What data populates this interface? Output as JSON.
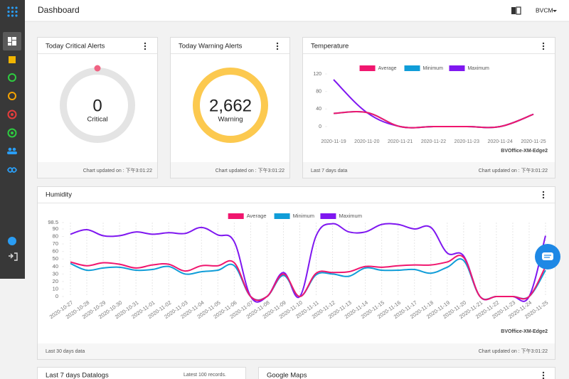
{
  "header": {
    "title": "Dashboard",
    "user": "BVCM"
  },
  "cards": {
    "critical": {
      "title": "Today Critical Alerts",
      "value": "0",
      "label": "Critical",
      "footer": "Chart updated on : 下午3:01:22"
    },
    "warning": {
      "title": "Today Warning Alerts",
      "value": "2,662",
      "label": "Warning",
      "footer": "Chart updated on : 下午3:01:22"
    },
    "temperature": {
      "footer_left": "Last 7 days data",
      "footer_right": "Chart updated on : 下午3:01:22"
    },
    "humidity": {
      "footer_left": "Last 30 days data",
      "footer_right": "Chart updated on : 下午3:01:22"
    },
    "datalogs": {
      "title": "Last 7 days Datalogs",
      "note": "Latest 100 records."
    },
    "maps": {
      "title": "Google Maps"
    }
  },
  "chart_data": [
    {
      "type": "line",
      "title": "Temperature",
      "annotation": "BVOffice-XM-Edge2",
      "categories": [
        "2020-11-19",
        "2020-11-20",
        "2020-11-21",
        "2020-11-22",
        "2020-11-23",
        "2020-11-24",
        "2020-11-25"
      ],
      "series": [
        {
          "name": "Average",
          "color": "#f0166e",
          "values": [
            30,
            32,
            0,
            0,
            0,
            0,
            28
          ]
        },
        {
          "name": "Minimum",
          "color": "#109dd8",
          "values": [
            30,
            32,
            0,
            0,
            0,
            0,
            28
          ]
        },
        {
          "name": "Maximum",
          "color": "#7f17f0",
          "values": [
            107,
            32,
            0,
            0,
            0,
            0,
            28
          ]
        }
      ],
      "ylim": [
        0,
        120
      ],
      "yticks": [
        0,
        40,
        80,
        120
      ],
      "grid": false
    },
    {
      "type": "line",
      "title": "Humidity",
      "annotation": "BVOffice-XM-Edge2",
      "categories": [
        "2020-10-27",
        "2020-10-28",
        "2020-10-29",
        "2020-10-30",
        "2020-10-31",
        "2020-11-01",
        "2020-11-02",
        "2020-11-03",
        "2020-11-04",
        "2020-11-05",
        "2020-11-06",
        "2020-11-07",
        "2020-11-08",
        "2020-11-09",
        "2020-11-10",
        "2020-11-11",
        "2020-11-12",
        "2020-11-13",
        "2020-11-14",
        "2020-11-15",
        "2020-11-16",
        "2020-11-17",
        "2020-11-18",
        "2020-11-19",
        "2020-11-20",
        "2020-11-21",
        "2020-11-22",
        "2020-11-23",
        "2020-11-24",
        "2020-11-25"
      ],
      "series": [
        {
          "name": "Average",
          "color": "#f0166e",
          "values": [
            46,
            41,
            45,
            43,
            38,
            42,
            43,
            34,
            41,
            41,
            45,
            0,
            0,
            30,
            0,
            31,
            32,
            33,
            40,
            39,
            41,
            42,
            42,
            46,
            52,
            0,
            0,
            0,
            0,
            40
          ]
        },
        {
          "name": "Minimum",
          "color": "#109dd8",
          "values": [
            44,
            35,
            38,
            39,
            35,
            36,
            40,
            30,
            33,
            35,
            41,
            0,
            0,
            28,
            0,
            29,
            30,
            27,
            38,
            35,
            35,
            36,
            31,
            39,
            48,
            0,
            0,
            0,
            0,
            35
          ]
        },
        {
          "name": "Maximum",
          "color": "#7f17f0",
          "values": [
            83,
            89,
            81,
            81,
            86,
            83,
            85,
            84,
            92,
            82,
            73,
            0,
            0,
            32,
            0,
            81,
            97,
            86,
            86,
            96,
            96,
            90,
            92,
            58,
            54,
            0,
            0,
            0,
            0,
            81
          ]
        }
      ],
      "ylim": [
        0,
        98.5
      ],
      "yticks": [
        0,
        10,
        20,
        30,
        40,
        50,
        60,
        70,
        80,
        90,
        98.5
      ],
      "grid": true
    }
  ]
}
